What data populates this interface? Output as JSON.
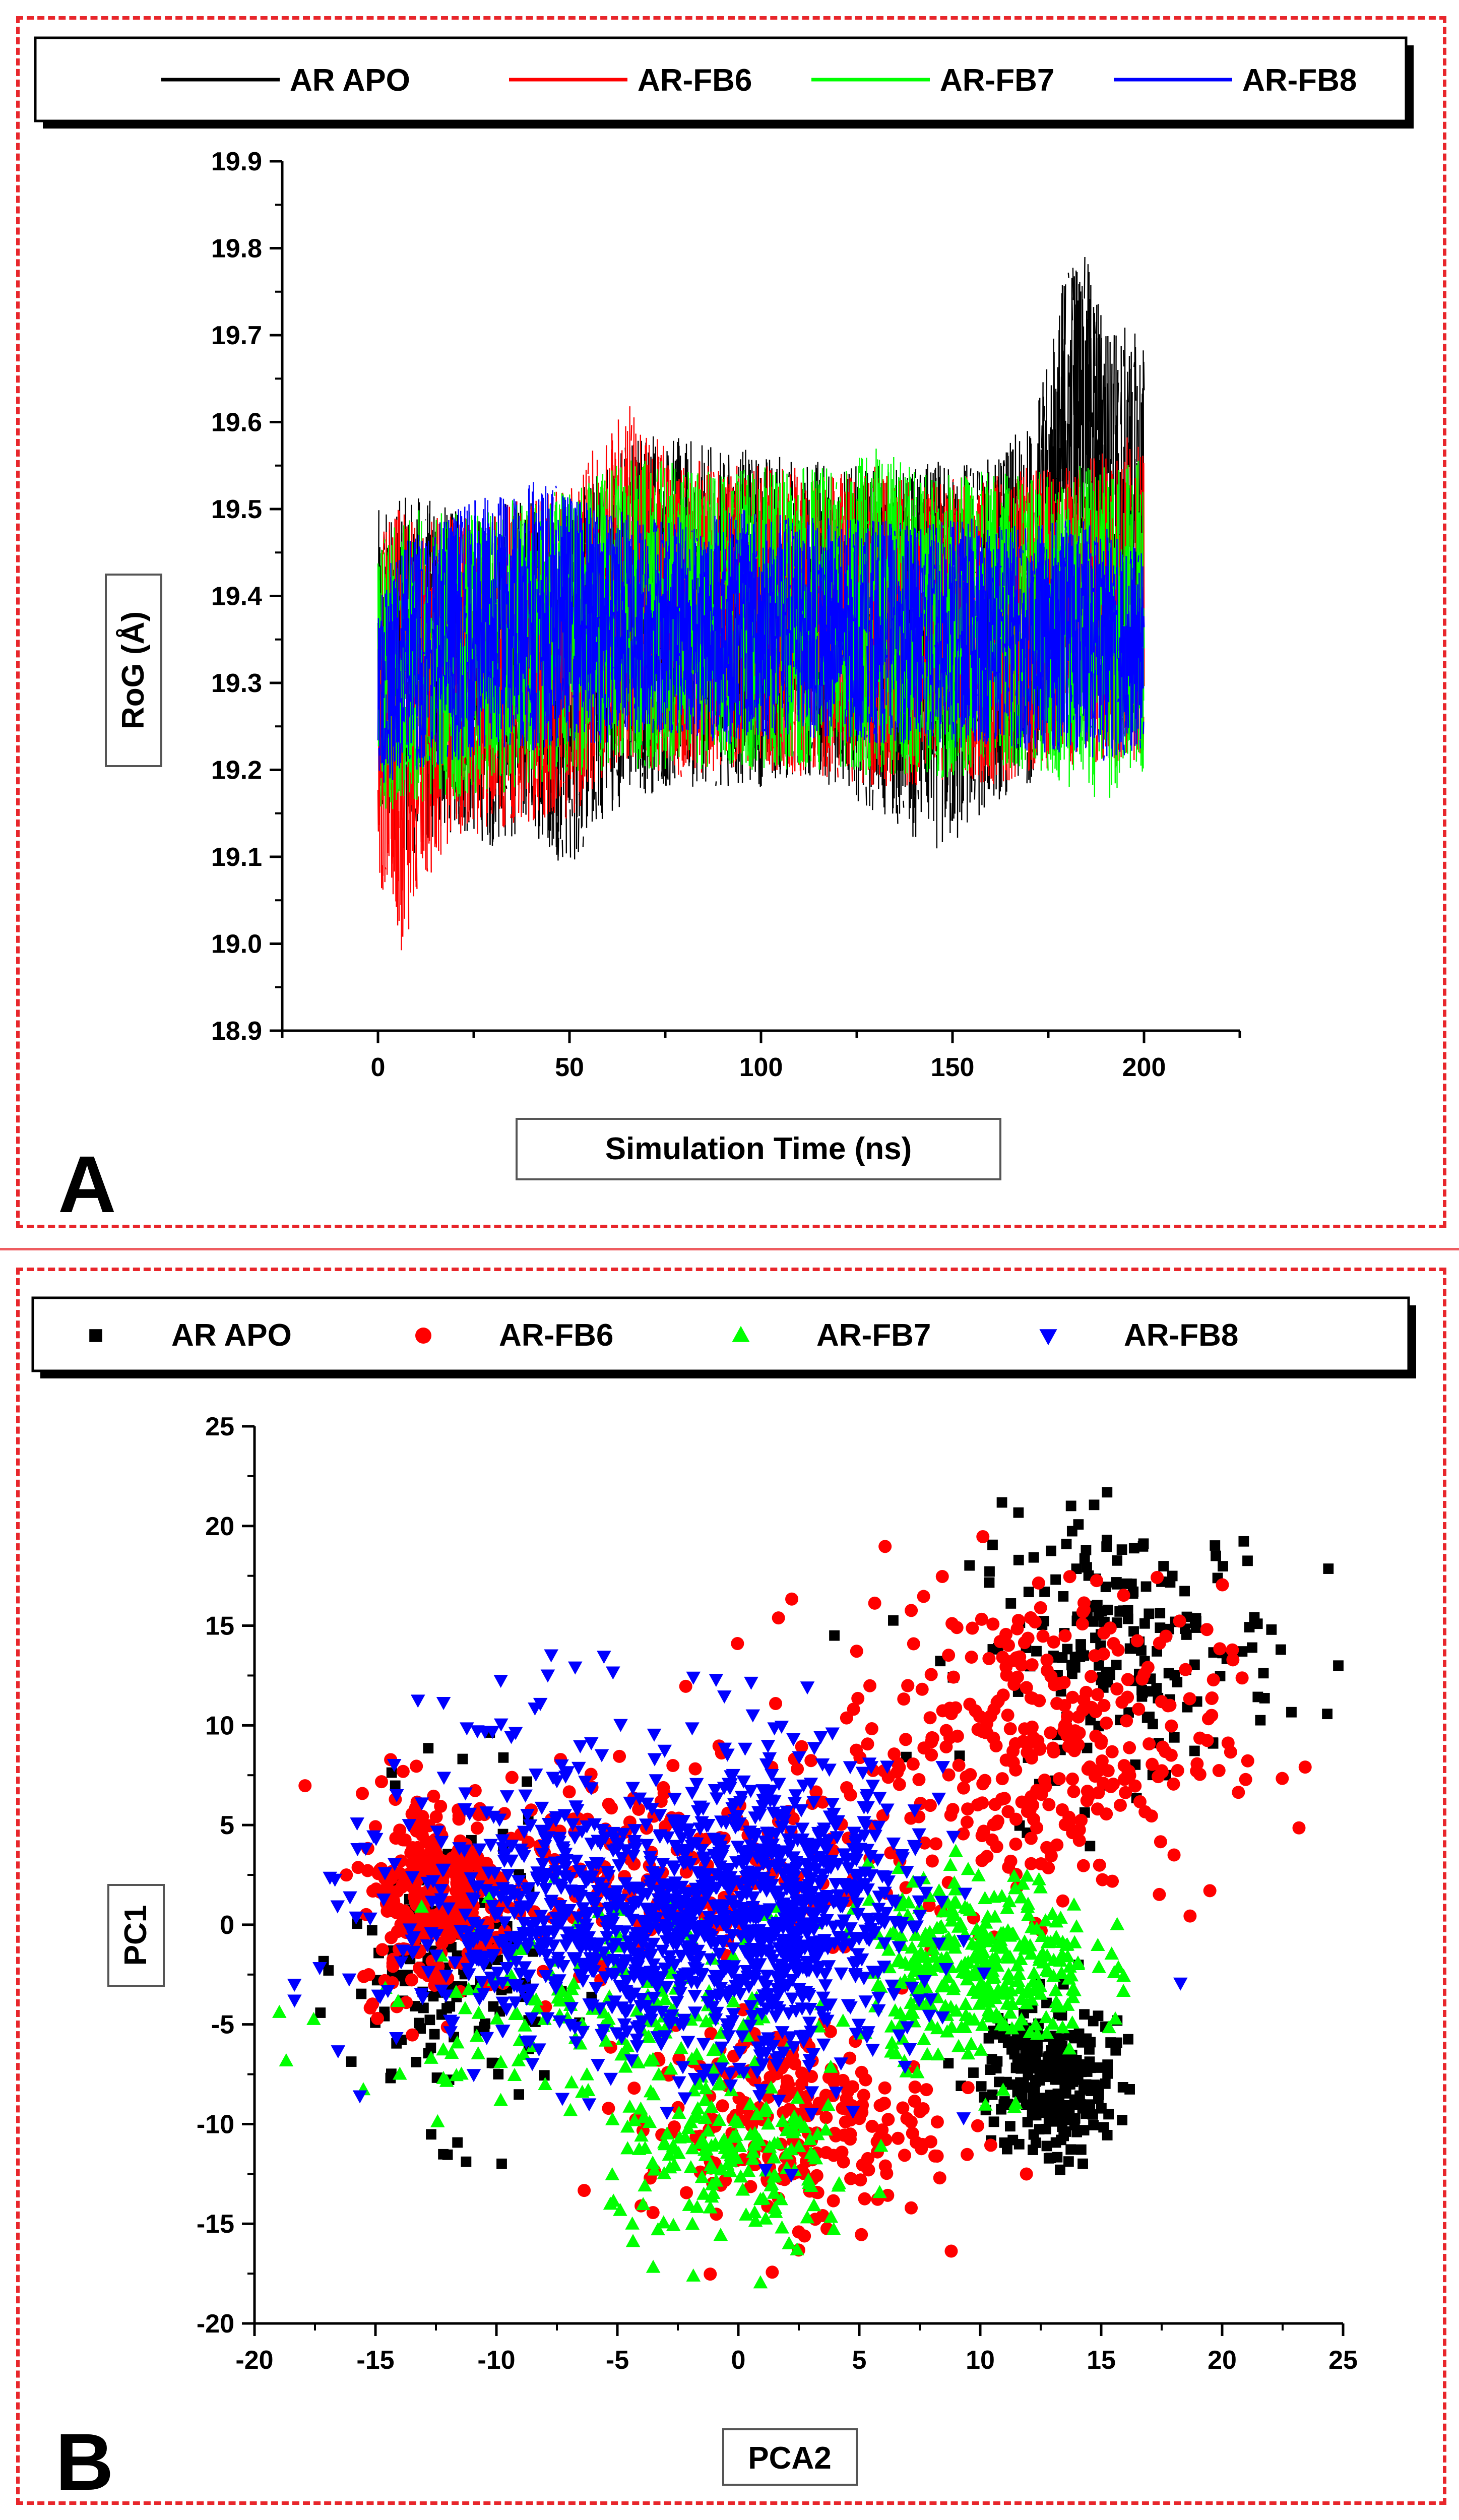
{
  "chart_data": [
    {
      "panel": "A",
      "type": "line",
      "title": "",
      "xlabel": "Simulation Time (ns)",
      "ylabel": "RoG (Å)",
      "xlim": [
        -25,
        225
      ],
      "ylim": [
        18.9,
        19.9
      ],
      "xticks": [
        0,
        50,
        100,
        150,
        200
      ],
      "yticks": [
        18.9,
        19.0,
        19.1,
        19.2,
        19.3,
        19.4,
        19.5,
        19.6,
        19.7,
        19.8,
        19.9
      ],
      "xtick_labels": [
        "0",
        "50",
        "100",
        "150",
        "200"
      ],
      "ytick_labels": [
        "18.9",
        "19.0",
        "19.1",
        "19.2",
        "19.3",
        "19.4",
        "19.5",
        "19.6",
        "19.7",
        "19.8",
        "19.9"
      ],
      "legend": [
        "AR APO",
        "AR-FB6",
        "AR-FB7",
        "AR-FB8"
      ],
      "series": [
        {
          "name": "AR APO",
          "color": "#000000",
          "x": [
            0,
            10,
            20,
            30,
            40,
            50,
            60,
            70,
            80,
            90,
            100,
            110,
            120,
            130,
            140,
            150,
            160,
            170,
            175,
            180,
            185,
            190,
            195,
            200
          ],
          "min": [
            19.12,
            19.1,
            19.13,
            19.11,
            19.13,
            19.08,
            19.15,
            19.17,
            19.18,
            19.18,
            19.18,
            19.19,
            19.18,
            19.15,
            19.12,
            19.1,
            19.16,
            19.18,
            19.27,
            19.42,
            19.43,
            19.33,
            19.25,
            19.24
          ],
          "max": [
            19.5,
            19.52,
            19.5,
            19.5,
            19.52,
            19.5,
            19.57,
            19.6,
            19.58,
            19.57,
            19.57,
            19.56,
            19.55,
            19.55,
            19.55,
            19.56,
            19.56,
            19.6,
            19.67,
            19.8,
            19.79,
            19.72,
            19.71,
            19.7
          ]
        },
        {
          "name": "AR-FB6",
          "color": "#ff0000",
          "x": [
            0,
            3,
            6,
            10,
            20,
            30,
            40,
            50,
            60,
            65,
            70,
            80,
            90,
            100,
            110,
            120,
            130,
            140,
            150,
            160,
            170,
            180,
            190,
            200
          ],
          "min": [
            19.07,
            19.0,
            18.99,
            19.04,
            19.12,
            19.13,
            19.14,
            19.14,
            19.2,
            19.2,
            19.2,
            19.19,
            19.2,
            19.2,
            19.19,
            19.19,
            19.18,
            19.18,
            19.19,
            19.18,
            19.19,
            19.2,
            19.2,
            19.21
          ],
          "max": [
            19.48,
            19.5,
            19.5,
            19.48,
            19.5,
            19.5,
            19.52,
            19.52,
            19.6,
            19.63,
            19.59,
            19.56,
            19.55,
            19.55,
            19.55,
            19.54,
            19.55,
            19.53,
            19.54,
            19.54,
            19.55,
            19.55,
            19.57,
            19.6
          ]
        },
        {
          "name": "AR-FB7",
          "color": "#00ff00",
          "x": [
            0,
            10,
            20,
            30,
            40,
            50,
            60,
            70,
            80,
            90,
            100,
            110,
            120,
            130,
            140,
            150,
            160,
            170,
            180,
            190,
            200
          ],
          "min": [
            19.15,
            19.16,
            19.16,
            19.17,
            19.18,
            19.19,
            19.2,
            19.2,
            19.2,
            19.2,
            19.2,
            19.2,
            19.2,
            19.19,
            19.19,
            19.19,
            19.2,
            19.2,
            19.18,
            19.16,
            19.2
          ],
          "max": [
            19.47,
            19.5,
            19.5,
            19.5,
            19.52,
            19.52,
            19.55,
            19.56,
            19.55,
            19.54,
            19.55,
            19.55,
            19.55,
            19.57,
            19.55,
            19.54,
            19.55,
            19.54,
            19.55,
            19.55,
            19.56
          ]
        },
        {
          "name": "AR-FB8",
          "color": "#0000ff",
          "x": [
            0,
            10,
            20,
            30,
            40,
            50,
            60,
            70,
            80,
            90,
            100,
            110,
            120,
            130,
            140,
            150,
            160,
            170,
            180,
            190,
            200
          ],
          "min": [
            19.18,
            19.2,
            19.21,
            19.22,
            19.22,
            19.23,
            19.23,
            19.24,
            19.24,
            19.23,
            19.23,
            19.24,
            19.23,
            19.23,
            19.23,
            19.22,
            19.23,
            19.22,
            19.22,
            19.21,
            19.22
          ],
          "max": [
            19.42,
            19.48,
            19.5,
            19.52,
            19.54,
            19.52,
            19.5,
            19.5,
            19.49,
            19.5,
            19.5,
            19.49,
            19.49,
            19.49,
            19.48,
            19.49,
            19.49,
            19.48,
            19.49,
            19.48,
            19.45
          ]
        }
      ]
    },
    {
      "panel": "B",
      "type": "scatter",
      "title": "",
      "xlabel": "PCA2",
      "ylabel": "PC1",
      "xlim": [
        -20,
        25
      ],
      "ylim": [
        -20,
        25
      ],
      "xticks": [
        -20,
        -15,
        -10,
        -5,
        0,
        5,
        10,
        15,
        20,
        25
      ],
      "yticks": [
        -20,
        -15,
        -10,
        -5,
        0,
        5,
        10,
        15,
        20,
        25
      ],
      "xtick_labels": [
        "-20",
        "-15",
        "-10",
        "-5",
        "0",
        "5",
        "10",
        "15",
        "20",
        "25"
      ],
      "ytick_labels": [
        "-20",
        "-15",
        "-10",
        "-5",
        "0",
        "5",
        "10",
        "15",
        "20",
        "25"
      ],
      "legend": [
        "AR APO",
        "AR-FB6",
        "AR-FB7",
        "AR-FB8"
      ],
      "series": [
        {
          "name": "AR APO",
          "color": "#000000",
          "marker": "square",
          "clusters": [
            {
              "cx": 13,
              "cy": -7.5,
              "sx": 1.3,
              "sy": 1.8,
              "n": 260
            },
            {
              "cx": 16,
              "cy": 14,
              "sx": 3.2,
              "sy": 3.2,
              "n": 200
            },
            {
              "cx": -12,
              "cy": -2,
              "sx": 2.0,
              "sy": 4.0,
              "n": 170
            }
          ]
        },
        {
          "name": "AR-FB6",
          "color": "#ff0000",
          "marker": "circle",
          "clusters": [
            {
              "cx": 12,
              "cy": 9,
              "sx": 4.0,
              "sy": 4.0,
              "n": 360
            },
            {
              "cx": -12.5,
              "cy": 1.5,
              "sx": 1.6,
              "sy": 2.6,
              "n": 260
            },
            {
              "cx": 2,
              "cy": -10,
              "sx": 3.0,
              "sy": 2.5,
              "n": 260
            },
            {
              "cx": -4,
              "cy": 3,
              "sx": 5.0,
              "sy": 2.5,
              "n": 220
            }
          ]
        },
        {
          "name": "AR-FB7",
          "color": "#00ff00",
          "marker": "triangle-up",
          "clusters": [
            {
              "cx": 10,
              "cy": -2,
              "sx": 2.3,
              "sy": 2.3,
              "n": 340
            },
            {
              "cx": 0,
              "cy": -12,
              "sx": 2.6,
              "sy": 2.2,
              "n": 170
            },
            {
              "cx": -5,
              "cy": -4,
              "sx": 5.0,
              "sy": 2.5,
              "n": 190
            }
          ]
        },
        {
          "name": "AR-FB8",
          "color": "#0000ff",
          "marker": "triangle-down",
          "clusters": [
            {
              "cx": -4,
              "cy": 0,
              "sx": 5.2,
              "sy": 3.2,
              "n": 900
            },
            {
              "cx": 2,
              "cy": 1,
              "sx": 2.6,
              "sy": 4.0,
              "n": 480
            },
            {
              "cx": -8,
              "cy": 8,
              "sx": 4.0,
              "sy": 3.5,
              "n": 40
            }
          ]
        }
      ]
    }
  ],
  "panel_labels": {
    "a": "A",
    "b": "B"
  }
}
